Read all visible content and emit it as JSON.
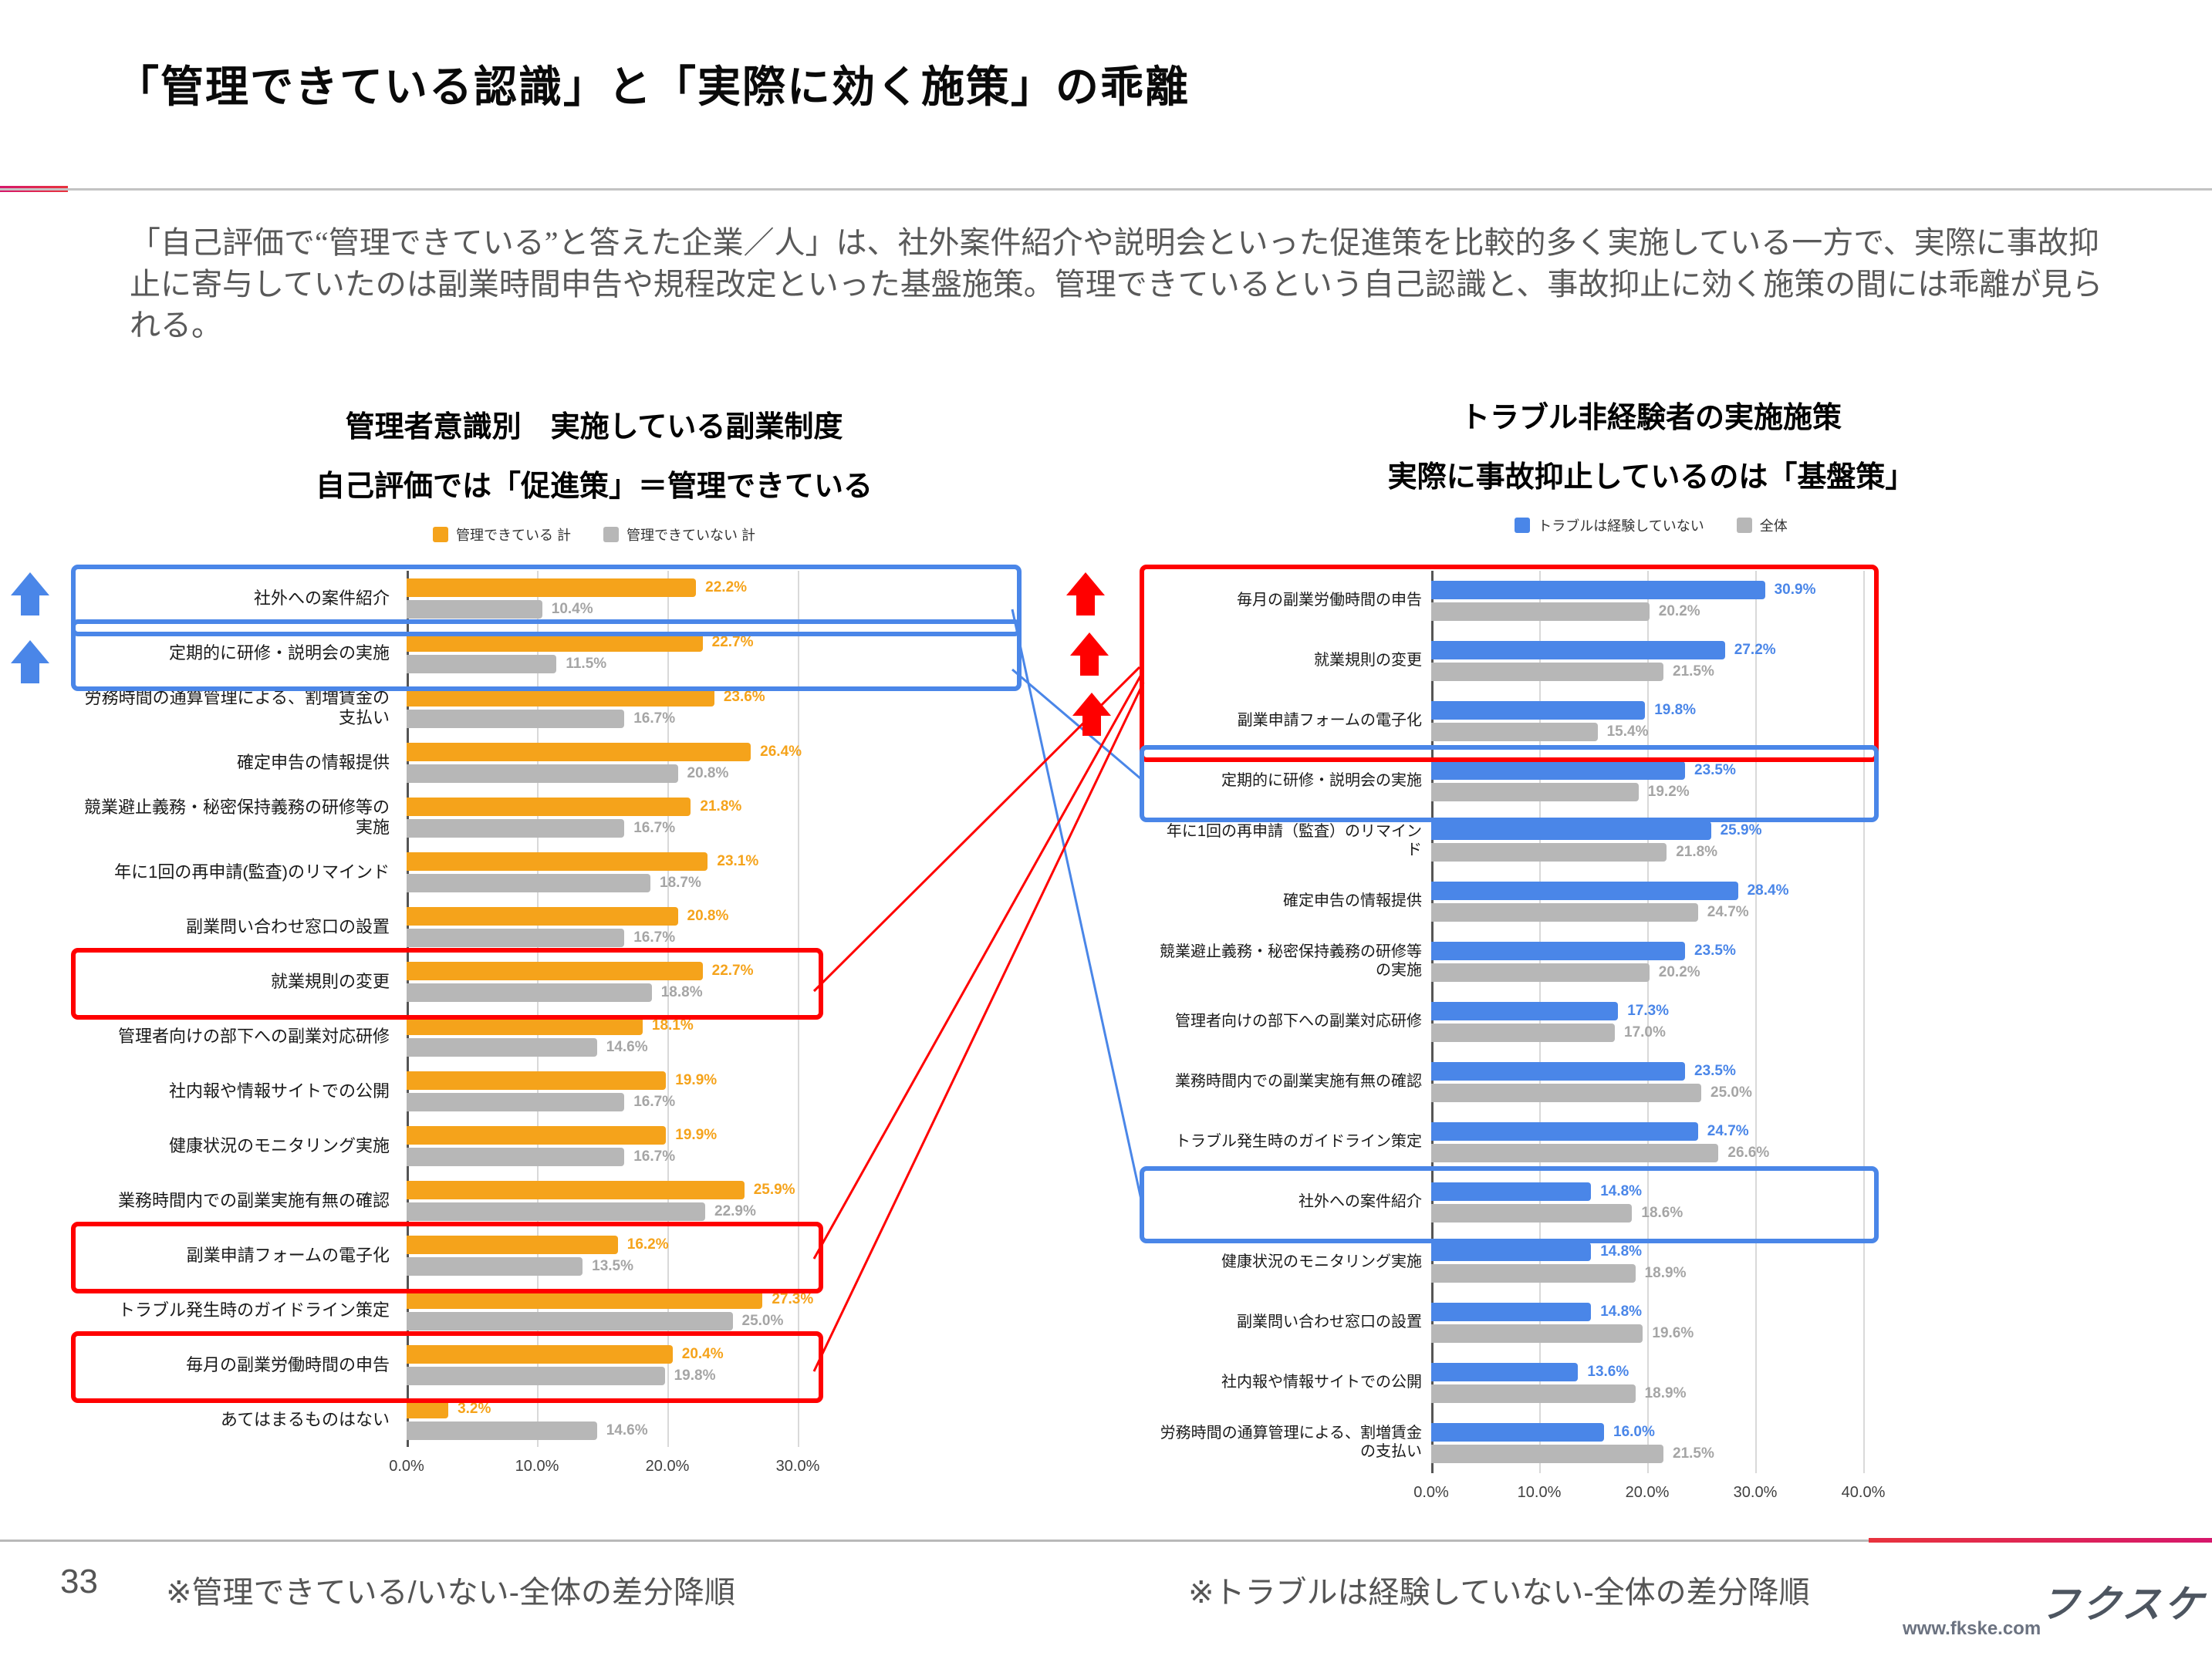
{
  "slide": {
    "title": "「管理できている認識」と「実際に効く施策」の乖離",
    "body": "「自己評価で“管理できている”と答えた企業／人」は、社外案件紹介や説明会といった促進策を比較的多く実施している一方で、実際に事故抑止に寄与していたのは副業時間申告や規程改定といった基盤施策。管理できているという自己認識と、事故抑止に効く施策の間には乖離が見られる。",
    "page_number": "33",
    "note_left": "※管理できている/いない-全体の差分降順",
    "note_right": "※トラブルは経験していない-全体の差分降順",
    "logo_text": "フクスケ",
    "logo_url": "www.fkske.com"
  },
  "colors": {
    "orange": "#F5A31B",
    "blue": "#4A86E8",
    "bar_gray": "#B7B7B7",
    "value_gray": "#A5A5A5",
    "highlight_red": "#FF0000",
    "highlight_blue": "#4A86E8"
  },
  "chart_data": [
    {
      "id": "left",
      "type": "bar",
      "orientation": "horizontal",
      "title": "管理者意識別　実施している副業制度",
      "subtitle": "自己評価では「促進策」＝管理できている",
      "xlabel": "",
      "ylabel": "",
      "xlim": [
        0,
        30
      ],
      "grid": true,
      "legend_position": "top",
      "xticks": [
        0,
        10,
        20,
        30
      ],
      "xtick_labels": [
        "0.0%",
        "10.0%",
        "20.0%",
        "30.0%"
      ],
      "categories": [
        "社外への案件紹介",
        "定期的に研修・説明会の実施",
        "労務時間の通算管理による、割増賃金の支払い",
        "確定申告の情報提供",
        "競業避止義務・秘密保持義務の研修等の実施",
        "年に1回の再申請(監査)のリマインド",
        "副業問い合わせ窓口の設置",
        "就業規則の変更",
        "管理者向けの部下への副業対応研修",
        "社内報や情報サイトでの公開",
        "健康状況のモニタリング実施",
        "業務時間内での副業実施有無の確認",
        "副業申請フォームの電子化",
        "トラブル発生時のガイドライン策定",
        "毎月の副業労働時間の申告",
        "あてはまるものはない"
      ],
      "series": [
        {
          "name": "管理できている 計",
          "color": "#F5A31B",
          "values": [
            22.2,
            22.7,
            23.6,
            26.4,
            21.8,
            23.1,
            20.8,
            22.7,
            18.1,
            19.9,
            19.9,
            25.9,
            16.2,
            27.3,
            20.4,
            3.2
          ]
        },
        {
          "name": "管理できていない 計",
          "color": "#B7B7B7",
          "values": [
            10.4,
            11.5,
            16.7,
            20.8,
            16.7,
            18.7,
            16.7,
            18.8,
            14.6,
            16.7,
            16.7,
            22.9,
            13.5,
            25.0,
            19.8,
            14.6
          ]
        }
      ],
      "highlights": [
        {
          "rows": [
            0,
            0
          ],
          "color": "#4A86E8"
        },
        {
          "rows": [
            1,
            1
          ],
          "color": "#4A86E8"
        },
        {
          "rows": [
            7,
            7
          ],
          "color": "#FF0000"
        },
        {
          "rows": [
            12,
            12
          ],
          "color": "#FF0000"
        },
        {
          "rows": [
            14,
            14
          ],
          "color": "#FF0000"
        }
      ]
    },
    {
      "id": "right",
      "type": "bar",
      "orientation": "horizontal",
      "title": "トラブル非経験者の実施施策",
      "subtitle": "実際に事故抑止しているのは「基盤策」",
      "xlabel": "",
      "ylabel": "",
      "xlim": [
        0,
        40
      ],
      "grid": true,
      "legend_position": "top",
      "xticks": [
        0,
        10,
        20,
        30,
        40
      ],
      "xtick_labels": [
        "0.0%",
        "10.0%",
        "20.0%",
        "30.0%",
        "40.0%"
      ],
      "categories": [
        "毎月の副業労働時間の申告",
        "就業規則の変更",
        "副業申請フォームの電子化",
        "定期的に研修・説明会の実施",
        "年に1回の再申請（監査）のリマインド",
        "確定申告の情報提供",
        "競業避止義務・秘密保持義務の研修等の実施",
        "管理者向けの部下への副業対応研修",
        "業務時間内での副業実施有無の確認",
        "トラブル発生時のガイドライン策定",
        "社外への案件紹介",
        "健康状況のモニタリング実施",
        "副業問い合わせ窓口の設置",
        "社内報や情報サイトでの公開",
        "労務時間の通算管理による、割増賃金の支払い"
      ],
      "series": [
        {
          "name": "トラブルは経験していない",
          "color": "#4A86E8",
          "values": [
            30.9,
            27.2,
            19.8,
            23.5,
            25.9,
            28.4,
            23.5,
            17.3,
            23.5,
            24.7,
            14.8,
            14.8,
            14.8,
            13.6,
            16.0
          ]
        },
        {
          "name": "全体",
          "color": "#B7B7B7",
          "values": [
            20.2,
            21.5,
            15.4,
            19.2,
            21.8,
            24.7,
            20.2,
            17.0,
            25.0,
            26.6,
            18.6,
            18.9,
            19.6,
            18.9,
            21.5
          ]
        }
      ],
      "highlights": [
        {
          "rows": [
            0,
            2
          ],
          "color": "#FF0000"
        },
        {
          "rows": [
            3,
            3
          ],
          "color": "#4A86E8"
        },
        {
          "rows": [
            10,
            10
          ],
          "color": "#4A86E8"
        }
      ]
    }
  ]
}
